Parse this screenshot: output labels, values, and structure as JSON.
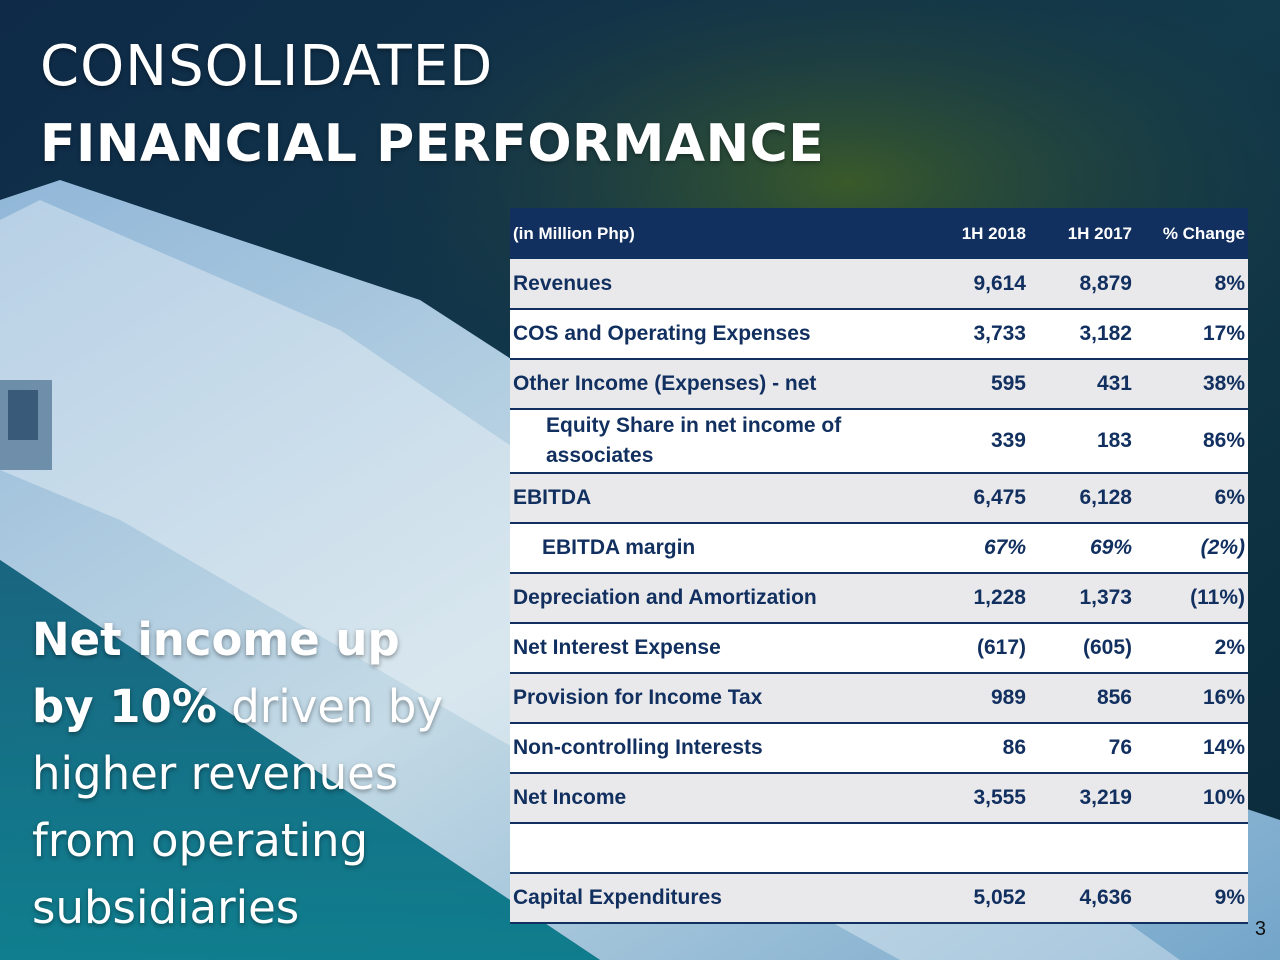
{
  "title": {
    "line1": "CONSOLIDATED",
    "line2": "FINANCIAL PERFORMANCE"
  },
  "headline": {
    "bold1": "Net income up",
    "bold2": "by 10%",
    "light1": " driven by",
    "light2": "higher revenues",
    "light3": "from operating",
    "light4": "subsidiaries"
  },
  "table": {
    "columns": [
      "(in Million Php)",
      "1H 2018",
      "1H 2017",
      "% Change"
    ],
    "rows": [
      {
        "label": "Revenues",
        "h1_2018": "9,614",
        "h1_2017": "8,879",
        "change": "8%"
      },
      {
        "label": "COS and Operating Expenses",
        "h1_2018": "3,733",
        "h1_2017": "3,182",
        "change": "17%"
      },
      {
        "label": "Other Income (Expenses) - net",
        "h1_2018": "595",
        "h1_2017": "431",
        "change": "38%"
      },
      {
        "label": "Equity Share in net income of associates",
        "h1_2018": "339",
        "h1_2017": "183",
        "change": "86%"
      },
      {
        "label": "EBITDA",
        "h1_2018": "6,475",
        "h1_2017": "6,128",
        "change": "6%"
      },
      {
        "label": "EBITDA margin",
        "h1_2018": "67%",
        "h1_2017": "69%",
        "change": "(2%)"
      },
      {
        "label": "Depreciation and Amortization",
        "h1_2018": "1,228",
        "h1_2017": "1,373",
        "change": "(11%)"
      },
      {
        "label": "Net Interest Expense",
        "h1_2018": "(617)",
        "h1_2017": "(605)",
        "change": "2%"
      },
      {
        "label": "Provision for Income Tax",
        "h1_2018": "989",
        "h1_2017": "856",
        "change": "16%"
      },
      {
        "label": "Non-controlling Interests",
        "h1_2018": "86",
        "h1_2017": "76",
        "change": "14%"
      },
      {
        "label": "Net Income",
        "h1_2018": "3,555",
        "h1_2017": "3,219",
        "change": "10%"
      },
      {
        "label": "",
        "h1_2018": "",
        "h1_2017": "",
        "change": ""
      },
      {
        "label": "Capital Expenditures",
        "h1_2018": "5,052",
        "h1_2017": "4,636",
        "change": "9%"
      }
    ]
  },
  "page_number": "3",
  "colors": {
    "navy": "#112f5f",
    "row_grey": "#e9e9eb",
    "row_white": "#ffffff",
    "title_text": "#ffffff"
  }
}
